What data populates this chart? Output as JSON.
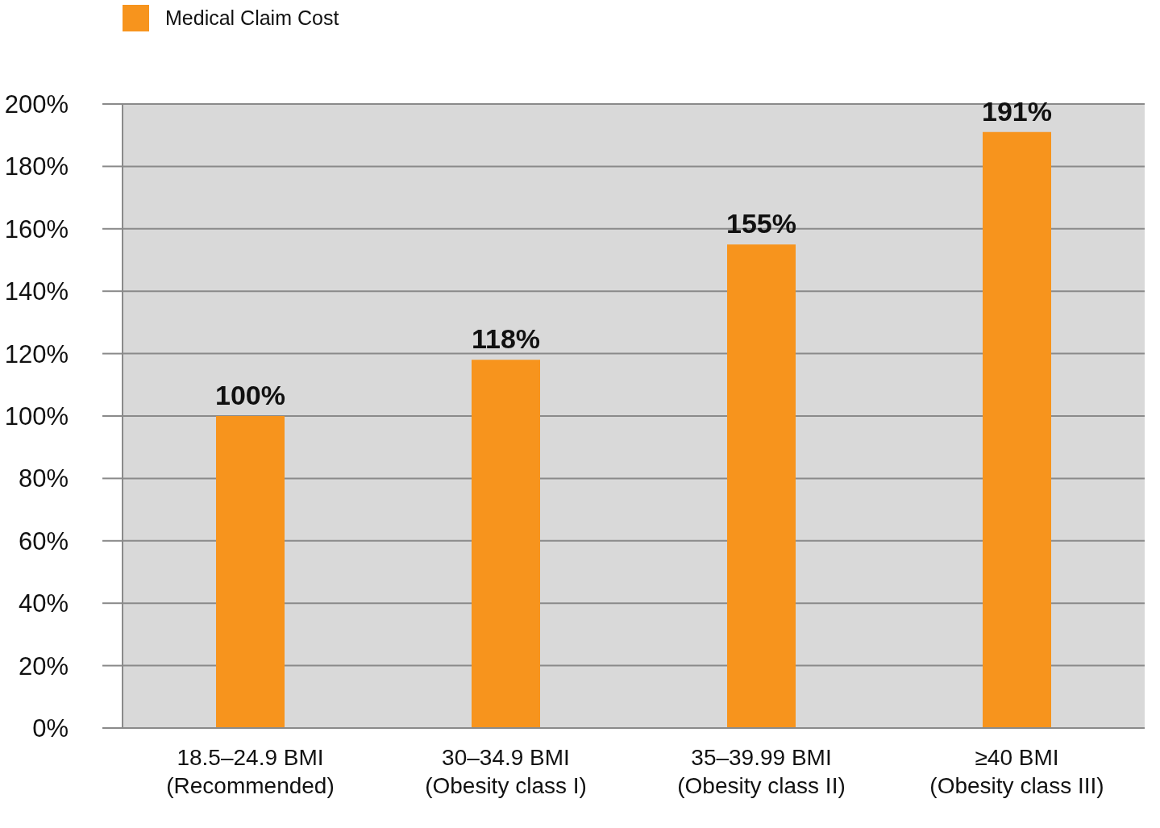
{
  "chart_data": {
    "type": "bar",
    "categories": [
      "18.5–24.9 BMI\n(Recommended)",
      "30–34.9 BMI\n(Obesity class I)",
      "35–39.99 BMI\n(Obesity class II)",
      "≥40 BMI\n(Obesity class III)"
    ],
    "series": [
      {
        "name": "Medical Claim Cost",
        "color": "#f7941d",
        "values": [
          100,
          118,
          155,
          191
        ],
        "value_labels": [
          "100%",
          "118%",
          "155%",
          "191%"
        ]
      }
    ],
    "ylim": [
      0,
      200
    ],
    "yticks": [
      {
        "value": 0,
        "label": "0%"
      },
      {
        "value": 20,
        "label": "20%"
      },
      {
        "value": 40,
        "label": "40%"
      },
      {
        "value": 60,
        "label": "60%"
      },
      {
        "value": 80,
        "label": "80%"
      },
      {
        "value": 100,
        "label": "100%"
      },
      {
        "value": 120,
        "label": "120%"
      },
      {
        "value": 140,
        "label": "140%"
      },
      {
        "value": 160,
        "label": "160%"
      },
      {
        "value": 180,
        "label": "180%"
      },
      {
        "value": 200,
        "label": "200%"
      }
    ],
    "grid": "y",
    "legend": "top left"
  }
}
